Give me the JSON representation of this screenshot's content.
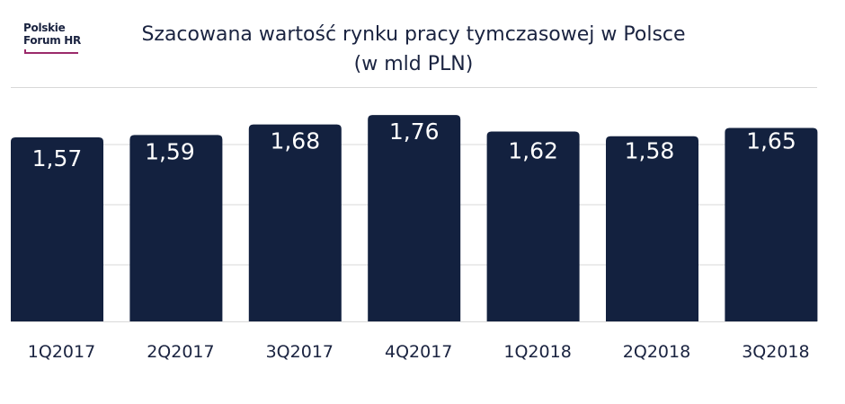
{
  "logo": {
    "line1": "Polskie",
    "line2": "Forum HR"
  },
  "header": {
    "title_line1": "Szacowana wartość rynku pracy tymczasowej w Polsce",
    "title_line2": "(w mld PLN)"
  },
  "colors": {
    "bar": "#13213f",
    "text": "#1a2340",
    "grid": "#d9d9d9",
    "value_label": "#ffffff",
    "logo_accent": "#9b2a6b"
  },
  "chart_data": {
    "type": "bar",
    "title": "Szacowana wartość rynku pracy tymczasowej w Polsce",
    "subtitle": "(w mld PLN)",
    "categories": [
      "1Q2017",
      "2Q2017",
      "3Q2017",
      "4Q2017",
      "1Q2018",
      "2Q2018",
      "3Q2018"
    ],
    "values": [
      1.57,
      1.59,
      1.68,
      1.76,
      1.62,
      1.58,
      1.65
    ],
    "value_labels": [
      "1,57",
      "1,59",
      "1,68",
      "1,76",
      "1,62",
      "1,58",
      "1,65"
    ],
    "xlabel": "",
    "ylabel": "",
    "grid": true,
    "legend": "none"
  }
}
